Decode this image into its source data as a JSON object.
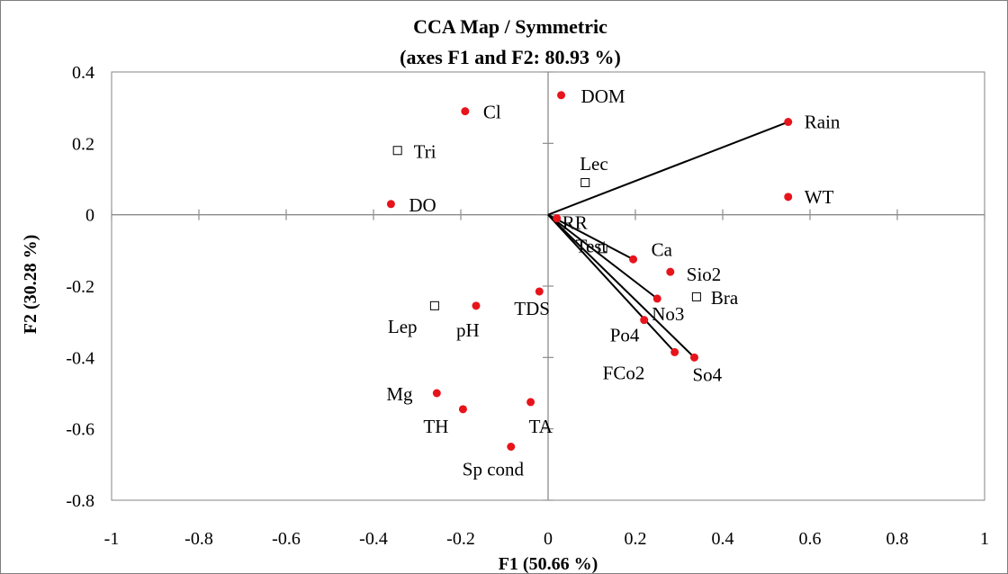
{
  "chart_data": {
    "type": "scatter",
    "title": "CCA Map / Symmetric",
    "subtitle": "(axes F1 and F2: 80.93 %)",
    "xlabel": "F1 (50.66 %)",
    "ylabel": "F2 (30.28 %)",
    "xlim": [
      -1,
      1
    ],
    "ylim": [
      -0.8,
      0.4
    ],
    "x_ticks": [
      "-1",
      "-0.8",
      "-0.6",
      "-0.4",
      "-0.2",
      "0",
      "0.2",
      "0.4",
      "0.6",
      "0.8",
      "1"
    ],
    "y_ticks": [
      "0.4",
      "0.2",
      "0",
      "-0.2",
      "-0.4",
      "-0.6",
      "-0.8"
    ],
    "grid": false,
    "marker_colors": {
      "variables": "#e8141b",
      "species": "#ffffff"
    },
    "variables": [
      {
        "label": "DOM",
        "x": 0.03,
        "y": 0.335,
        "vector": false
      },
      {
        "label": "Cl",
        "x": -0.19,
        "y": 0.29,
        "vector": false
      },
      {
        "label": "Rain",
        "x": 0.55,
        "y": 0.26,
        "vector": true
      },
      {
        "label": "WT",
        "x": 0.55,
        "y": 0.05,
        "vector": false
      },
      {
        "label": "DO",
        "x": -0.36,
        "y": 0.03,
        "vector": false
      },
      {
        "label": "RR",
        "x": 0.02,
        "y": -0.01,
        "vector": false
      },
      {
        "label": "Ca",
        "x": 0.195,
        "y": -0.125,
        "vector": true
      },
      {
        "label": "Sio2",
        "x": 0.28,
        "y": -0.16,
        "vector": false
      },
      {
        "label": "No3",
        "x": 0.25,
        "y": -0.235,
        "vector": true
      },
      {
        "label": "Po4",
        "x": 0.22,
        "y": -0.295,
        "vector": false
      },
      {
        "label": "FCo2",
        "x": 0.29,
        "y": -0.385,
        "vector": true
      },
      {
        "label": "So4",
        "x": 0.335,
        "y": -0.4,
        "vector": true
      },
      {
        "label": "TDS",
        "x": -0.02,
        "y": -0.215,
        "vector": false
      },
      {
        "label": "pH",
        "x": -0.165,
        "y": -0.255,
        "vector": false
      },
      {
        "label": "Mg",
        "x": -0.255,
        "y": -0.5,
        "vector": false
      },
      {
        "label": "TH",
        "x": -0.195,
        "y": -0.545,
        "vector": false
      },
      {
        "label": "TA",
        "x": -0.04,
        "y": -0.525,
        "vector": false
      },
      {
        "label": "Sp cond",
        "x": -0.085,
        "y": -0.65,
        "vector": false
      }
    ],
    "species": [
      {
        "label": "Tri",
        "x": -0.345,
        "y": 0.18
      },
      {
        "label": "Lec",
        "x": 0.085,
        "y": 0.09
      },
      {
        "label": "Test",
        "x": 0.125,
        "y": -0.095
      },
      {
        "label": "Bra",
        "x": 0.34,
        "y": -0.23
      },
      {
        "label": "Lep",
        "x": -0.26,
        "y": -0.255
      }
    ]
  }
}
